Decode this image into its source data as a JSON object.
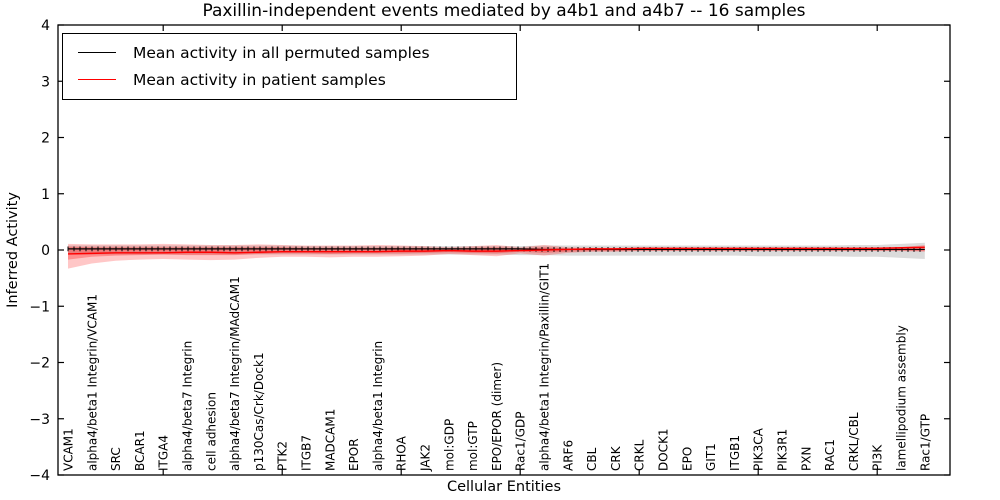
{
  "figure": {
    "title": "Paxillin-independent events mediated by a4b1 and a4b7 -- 16 samples",
    "xlabel": "Cellular Entities",
    "ylabel": "Inferred Activity"
  },
  "legend": {
    "entries": [
      {
        "label": "Mean activity in all permuted samples",
        "color": "#000000"
      },
      {
        "label": "Mean activity in patient samples",
        "color": "#ff0000"
      }
    ]
  },
  "chart_data": {
    "type": "line",
    "title": "Paxillin-independent events mediated by a4b1 and a4b7 -- 16 samples",
    "xlabel": "Cellular Entities",
    "ylabel": "Inferred Activity",
    "ylim": [
      -4,
      4
    ],
    "ytick_labels": [
      "4",
      "3",
      "2",
      "1",
      "0",
      "−1",
      "−2",
      "−3",
      "−4"
    ],
    "ytick_values": [
      4,
      3,
      2,
      1,
      0,
      -1,
      -2,
      -3,
      -4
    ],
    "grid": false,
    "legend_position": "upper left",
    "categories": [
      "VCAM1",
      "alpha4/beta1 Integrin/VCAM1",
      "SRC",
      "BCAR1",
      "ITGA4",
      "alpha4/beta7 Integrin",
      "cell adhesion",
      "alpha4/beta7 Integrin/MAdCAM1",
      "p130Cas/Crk/Dock1",
      "PTK2",
      "ITGB7",
      "MADCAM1",
      "EPOR",
      "alpha4/beta1 Integrin",
      "RHOA",
      "JAK2",
      "mol:GDP",
      "mol:GTP",
      "EPO/EPOR (dimer)",
      "Rac1/GDP",
      "alpha4/beta1 Integrin/Paxillin/GIT1",
      "ARF6",
      "CBL",
      "CRK",
      "CRKL",
      "DOCK1",
      "EPO",
      "GIT1",
      "ITGB1",
      "PIK3CA",
      "PIK3R1",
      "PXN",
      "RAC1",
      "CRKL/CBL",
      "PI3K",
      "lamellipodium assembly",
      "Rac1/GTP"
    ],
    "series": [
      {
        "name": "Mean activity in all permuted samples",
        "color": "#000000",
        "marker": "|",
        "values": [
          0.02,
          0.02,
          0.02,
          0.02,
          0.02,
          0.02,
          0.02,
          0.02,
          0.02,
          0.02,
          0.02,
          0.02,
          0.02,
          0.02,
          0.02,
          0.02,
          0.02,
          0.02,
          0.02,
          0.02,
          0.01,
          0.01,
          0.01,
          0.01,
          0.01,
          0.01,
          0.01,
          0.01,
          0.01,
          0.01,
          0.01,
          0.01,
          0.01,
          0.01,
          0.01,
          0.01,
          0.01
        ]
      },
      {
        "name": "Mean activity in patient samples",
        "color": "#ff0000",
        "marker": "none",
        "values": [
          -0.07,
          -0.06,
          -0.05,
          -0.05,
          -0.05,
          -0.04,
          -0.04,
          -0.05,
          -0.04,
          -0.03,
          -0.03,
          -0.03,
          -0.03,
          -0.03,
          -0.02,
          -0.02,
          -0.01,
          -0.02,
          -0.02,
          -0.01,
          0.0,
          0.01,
          0.02,
          0.02,
          0.03,
          0.03,
          0.03,
          0.03,
          0.03,
          0.03,
          0.03,
          0.03,
          0.03,
          0.03,
          0.03,
          0.04,
          0.05
        ]
      }
    ],
    "bands": [
      {
        "name": "permuted-samples-range",
        "color": "#000000",
        "opacity": 0.14,
        "upper": [
          0.08,
          0.08,
          0.08,
          0.08,
          0.08,
          0.08,
          0.08,
          0.08,
          0.08,
          0.08,
          0.07,
          0.07,
          0.07,
          0.07,
          0.07,
          0.07,
          0.07,
          0.07,
          0.07,
          0.07,
          0.08,
          0.08,
          0.08,
          0.08,
          0.08,
          0.08,
          0.08,
          0.08,
          0.08,
          0.08,
          0.08,
          0.08,
          0.08,
          0.09,
          0.09,
          0.11,
          0.13
        ],
        "lower": [
          -0.08,
          -0.08,
          -0.08,
          -0.08,
          -0.08,
          -0.08,
          -0.08,
          -0.08,
          -0.08,
          -0.08,
          -0.08,
          -0.08,
          -0.08,
          -0.08,
          -0.08,
          -0.08,
          -0.08,
          -0.08,
          -0.08,
          -0.09,
          -0.09,
          -0.1,
          -0.1,
          -0.1,
          -0.1,
          -0.1,
          -0.1,
          -0.1,
          -0.1,
          -0.11,
          -0.11,
          -0.11,
          -0.11,
          -0.12,
          -0.12,
          -0.14,
          -0.16
        ]
      },
      {
        "name": "patient-samples-range-outer",
        "color": "#ff0000",
        "opacity": 0.22,
        "upper": [
          0.11,
          0.1,
          0.1,
          0.1,
          0.11,
          0.1,
          0.09,
          0.09,
          0.1,
          0.09,
          0.08,
          0.08,
          0.08,
          0.09,
          0.08,
          0.07,
          0.05,
          0.07,
          0.09,
          0.05,
          0.09,
          0.05,
          0.04,
          0.04,
          0.04,
          0.04,
          0.04,
          0.04,
          0.04,
          0.04,
          0.04,
          0.04,
          0.04,
          0.04,
          0.05,
          0.05,
          0.09
        ],
        "lower": [
          -0.33,
          -0.24,
          -0.19,
          -0.17,
          -0.16,
          -0.17,
          -0.18,
          -0.17,
          -0.14,
          -0.12,
          -0.12,
          -0.13,
          -0.12,
          -0.12,
          -0.11,
          -0.1,
          -0.07,
          -0.09,
          -0.11,
          -0.06,
          -0.1,
          -0.05,
          -0.03,
          -0.03,
          -0.02,
          -0.02,
          -0.02,
          -0.02,
          -0.02,
          -0.02,
          -0.02,
          -0.02,
          -0.02,
          -0.02,
          -0.02,
          -0.02,
          -0.03
        ]
      },
      {
        "name": "patient-samples-range-inner",
        "color": "#ff0000",
        "opacity": 0.28,
        "upper": [
          0.06,
          0.05,
          0.05,
          0.05,
          0.05,
          0.05,
          0.05,
          0.05,
          0.05,
          0.05,
          0.04,
          0.04,
          0.04,
          0.04,
          0.04,
          0.04,
          0.03,
          0.04,
          0.05,
          0.03,
          0.05,
          0.03,
          0.03,
          0.03,
          0.03,
          0.03,
          0.03,
          0.03,
          0.03,
          0.03,
          0.03,
          0.03,
          0.03,
          0.03,
          0.03,
          0.03,
          0.05
        ],
        "lower": [
          -0.17,
          -0.12,
          -0.1,
          -0.09,
          -0.08,
          -0.09,
          -0.09,
          -0.09,
          -0.07,
          -0.06,
          -0.06,
          -0.07,
          -0.06,
          -0.06,
          -0.06,
          -0.05,
          -0.04,
          -0.05,
          -0.06,
          -0.03,
          -0.05,
          -0.03,
          -0.02,
          -0.02,
          -0.01,
          -0.01,
          -0.01,
          -0.01,
          -0.01,
          -0.01,
          -0.01,
          -0.01,
          -0.01,
          -0.01,
          -0.01,
          -0.01,
          -0.02
        ]
      }
    ]
  }
}
